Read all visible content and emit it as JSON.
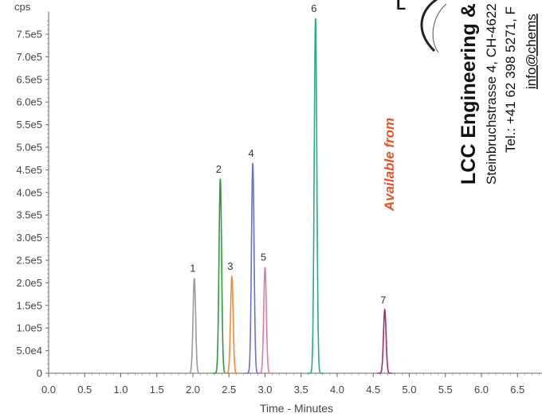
{
  "chart_data": {
    "type": "line",
    "ylabel": "cps",
    "xlabel": "Time - Minutes",
    "xlim": [
      0.0,
      6.9
    ],
    "ylim": [
      0,
      800000
    ],
    "x_ticks": [
      "0.0",
      "0.5",
      "1.0",
      "1.5",
      "2.0",
      "2.5",
      "3.0",
      "3.5",
      "4.0",
      "4.5",
      "5.0",
      "5.5",
      "6.0",
      "6.5"
    ],
    "y_ticks": [
      {
        "value": 0,
        "label": "0"
      },
      {
        "value": 50000,
        "label": "5.0e4"
      },
      {
        "value": 100000,
        "label": "1.0e5"
      },
      {
        "value": 150000,
        "label": "1.5e5"
      },
      {
        "value": 200000,
        "label": "2.0e5"
      },
      {
        "value": 250000,
        "label": "2.5e5"
      },
      {
        "value": 300000,
        "label": "3.0e5"
      },
      {
        "value": 350000,
        "label": "3.5e5"
      },
      {
        "value": 400000,
        "label": "4.0e5"
      },
      {
        "value": 450000,
        "label": "4.5e5"
      },
      {
        "value": 500000,
        "label": "5.0e5"
      },
      {
        "value": 550000,
        "label": "5.5e5"
      },
      {
        "value": 600000,
        "label": "6.0e5"
      },
      {
        "value": 650000,
        "label": "6.5e5"
      },
      {
        "value": 700000,
        "label": "7.0e5"
      },
      {
        "value": 750000,
        "label": "7.5e5"
      }
    ],
    "grid": false,
    "series": [
      {
        "label": "1",
        "retention_time": 2.02,
        "height": 210000,
        "color": "#9a9a9a"
      },
      {
        "label": "2",
        "retention_time": 2.38,
        "height": 430000,
        "color": "#2e9a3e"
      },
      {
        "label": "3",
        "retention_time": 2.54,
        "height": 215000,
        "color": "#f08a3a"
      },
      {
        "label": "4",
        "retention_time": 2.83,
        "height": 465000,
        "color": "#6a6fd0"
      },
      {
        "label": "5",
        "retention_time": 3.0,
        "height": 235000,
        "color": "#e07aa8"
      },
      {
        "label": "6",
        "retention_time": 3.7,
        "height": 785000,
        "color": "#2aa88a"
      },
      {
        "label": "7",
        "retention_time": 4.66,
        "height": 140000,
        "color": "#a0306a"
      }
    ]
  },
  "overlay": {
    "available_text": "Available from",
    "available_color": "#e8542a",
    "company_line": "LCC Engineering &",
    "address_line": "Steinbruchstrasse 4, CH-4622",
    "phone_line": "Tel.: +41 62 398 5271, F",
    "email_line": "info@chems",
    "logo_letter": "L"
  }
}
